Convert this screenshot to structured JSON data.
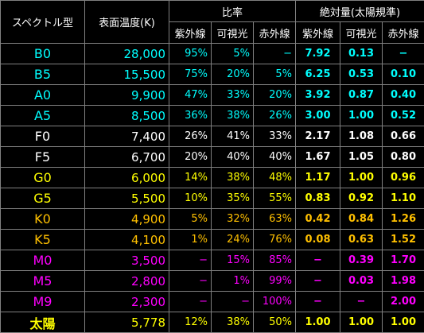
{
  "headers": {
    "spectral_type": "スペクトル型",
    "surface_temp": "表面温度(K)",
    "ratio": "比率",
    "absolute": "絶対量(太陽規準)",
    "uv": "紫外線",
    "visible": "可視光",
    "ir": "赤外線"
  },
  "colors": {
    "cyan": "#00FFFF",
    "white": "#FFFFFF",
    "yellow": "#FFFF00",
    "orange": "#FFC000",
    "magenta": "#FF00FF"
  },
  "rows": [
    {
      "type": "B0",
      "temp": "28,000",
      "uv": "95%",
      "vis": "5%",
      "ir": "−",
      "abs_uv": "7.92",
      "abs_vis": "0.13",
      "abs_ir": "−",
      "color": "#00FFFF"
    },
    {
      "type": "B5",
      "temp": "15,500",
      "uv": "75%",
      "vis": "20%",
      "ir": "5%",
      "abs_uv": "6.25",
      "abs_vis": "0.53",
      "abs_ir": "0.10",
      "color": "#00FFFF"
    },
    {
      "type": "A0",
      "temp": "9,900",
      "uv": "47%",
      "vis": "33%",
      "ir": "20%",
      "abs_uv": "3.92",
      "abs_vis": "0.87",
      "abs_ir": "0.40",
      "color": "#00FFFF"
    },
    {
      "type": "A5",
      "temp": "8,500",
      "uv": "36%",
      "vis": "38%",
      "ir": "26%",
      "abs_uv": "3.00",
      "abs_vis": "1.00",
      "abs_ir": "0.52",
      "color": "#00FFFF"
    },
    {
      "type": "F0",
      "temp": "7,400",
      "uv": "26%",
      "vis": "41%",
      "ir": "33%",
      "abs_uv": "2.17",
      "abs_vis": "1.08",
      "abs_ir": "0.66",
      "color": "#FFFFFF"
    },
    {
      "type": "F5",
      "temp": "6,700",
      "uv": "20%",
      "vis": "40%",
      "ir": "40%",
      "abs_uv": "1.67",
      "abs_vis": "1.05",
      "abs_ir": "0.80",
      "color": "#FFFFFF"
    },
    {
      "type": "G0",
      "temp": "6,000",
      "uv": "14%",
      "vis": "38%",
      "ir": "48%",
      "abs_uv": "1.17",
      "abs_vis": "1.00",
      "abs_ir": "0.96",
      "color": "#FFFF00"
    },
    {
      "type": "G5",
      "temp": "5,500",
      "uv": "10%",
      "vis": "35%",
      "ir": "55%",
      "abs_uv": "0.83",
      "abs_vis": "0.92",
      "abs_ir": "1.10",
      "color": "#FFFF00"
    },
    {
      "type": "K0",
      "temp": "4,900",
      "uv": "5%",
      "vis": "32%",
      "ir": "63%",
      "abs_uv": "0.42",
      "abs_vis": "0.84",
      "abs_ir": "1.26",
      "color": "#FFC000"
    },
    {
      "type": "K5",
      "temp": "4,100",
      "uv": "1%",
      "vis": "24%",
      "ir": "76%",
      "abs_uv": "0.08",
      "abs_vis": "0.63",
      "abs_ir": "1.52",
      "color": "#FFC000"
    },
    {
      "type": "M0",
      "temp": "3,500",
      "uv": "−",
      "vis": "15%",
      "ir": "85%",
      "abs_uv": "−",
      "abs_vis": "0.39",
      "abs_ir": "1.70",
      "color": "#FF00FF"
    },
    {
      "type": "M5",
      "temp": "2,800",
      "uv": "−",
      "vis": "1%",
      "ir": "99%",
      "abs_uv": "−",
      "abs_vis": "0.03",
      "abs_ir": "1.98",
      "color": "#FF00FF"
    },
    {
      "type": "M9",
      "temp": "2,300",
      "uv": "−",
      "vis": "−",
      "ir": "100%",
      "abs_uv": "−",
      "abs_vis": "−",
      "abs_ir": "2.00",
      "color": "#FF00FF"
    }
  ],
  "sun": {
    "type": "太陽",
    "temp": "5,778",
    "uv": "12%",
    "vis": "38%",
    "ir": "50%",
    "abs_uv": "1.00",
    "abs_vis": "1.00",
    "abs_ir": "1.00",
    "color": "#FFFF00"
  }
}
